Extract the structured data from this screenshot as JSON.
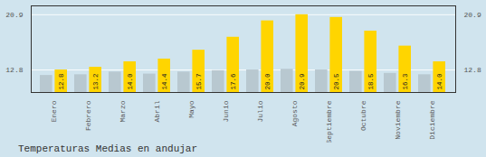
{
  "chart_data": {
    "type": "bar",
    "title": "Temperaturas Medias en andujar",
    "categories": [
      "Enero",
      "Febrero",
      "Marzo",
      "Abril",
      "Mayo",
      "Junio",
      "Julio",
      "Agosto",
      "Septiembre",
      "Octubre",
      "Noviembre",
      "Diciembre"
    ],
    "series": [
      {
        "color": "#B8C8D0",
        "values": [
          12.0,
          12.1,
          12.5,
          12.2,
          12.5,
          12.7,
          12.8,
          12.9,
          12.8,
          12.6,
          12.3,
          12.1
        ]
      },
      {
        "color": "#FFD500",
        "values": [
          12.8,
          13.2,
          14.0,
          14.4,
          15.7,
          17.6,
          20.0,
          20.9,
          20.5,
          18.5,
          16.3,
          14.0
        ],
        "value_labels": [
          "12.8",
          "13.2",
          "14.0",
          "14.4",
          "15.7",
          "17.6",
          "20.0",
          "20.9",
          "20.5",
          "18.5",
          "16.3",
          "14.0"
        ],
        "data_labels": true
      }
    ],
    "ylim": [
      9.5,
      22.2
    ],
    "yticks": [
      12.8,
      20.9
    ],
    "grid": true
  }
}
